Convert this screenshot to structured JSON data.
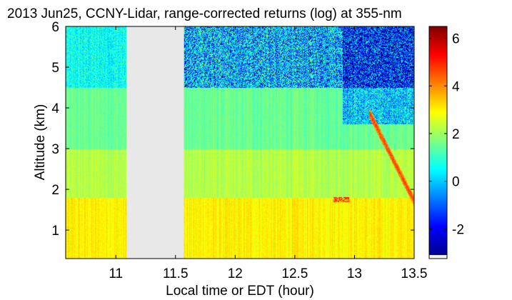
{
  "chart_data": {
    "type": "heatmap",
    "title": "2013 Jun25, CCNY-Lidar, range-corrected returns (log) at 355-nm",
    "xlabel": "Local time or EDT (hour)",
    "ylabel": "Altitude (km)",
    "xlim": [
      10.58,
      13.5
    ],
    "ylim": [
      0.3,
      6.0
    ],
    "xticks": [
      11,
      11.5,
      12,
      12.5,
      13,
      13.5
    ],
    "xtick_labels": [
      "11",
      "11.5",
      "12",
      "12.5",
      "13",
      "13.5"
    ],
    "yticks": [
      1,
      2,
      3,
      4,
      5,
      6
    ],
    "ytick_labels": [
      "1",
      "2",
      "3",
      "4",
      "5",
      "6"
    ],
    "colorbar": {
      "colormap": "jet",
      "clim": [
        -3.1,
        6.5
      ],
      "ticks": [
        -2,
        0,
        2,
        4,
        6
      ],
      "tick_labels": [
        "-2",
        "0",
        "2",
        "4",
        "6"
      ]
    },
    "no_data_gap": {
      "x_start": 11.09,
      "x_end": 11.57,
      "color": "#e8e8e8"
    },
    "field_description": [
      {
        "altitude_range": [
          0.3,
          1.8
        ],
        "approx_value": 3.0,
        "note": "boundary layer, high return"
      },
      {
        "altitude_range": [
          1.8,
          3.0
        ],
        "approx_value": 2.2
      },
      {
        "altitude_range": [
          3.0,
          4.5
        ],
        "approx_value": 1.5
      },
      {
        "altitude_range": [
          4.5,
          6.0
        ],
        "approx_value": 0.6,
        "note": "noisy, negative values common after 11.6 h"
      }
    ],
    "features": [
      {
        "type": "aerosol_plume",
        "time_range": [
          13.12,
          13.5
        ],
        "altitude_range": [
          1.7,
          3.9
        ],
        "approx_value": 4.8
      },
      {
        "type": "cloud_streak",
        "time_range": [
          12.82,
          12.95
        ],
        "altitude": 1.75,
        "approx_value": 5.0
      }
    ],
    "grid": false
  }
}
